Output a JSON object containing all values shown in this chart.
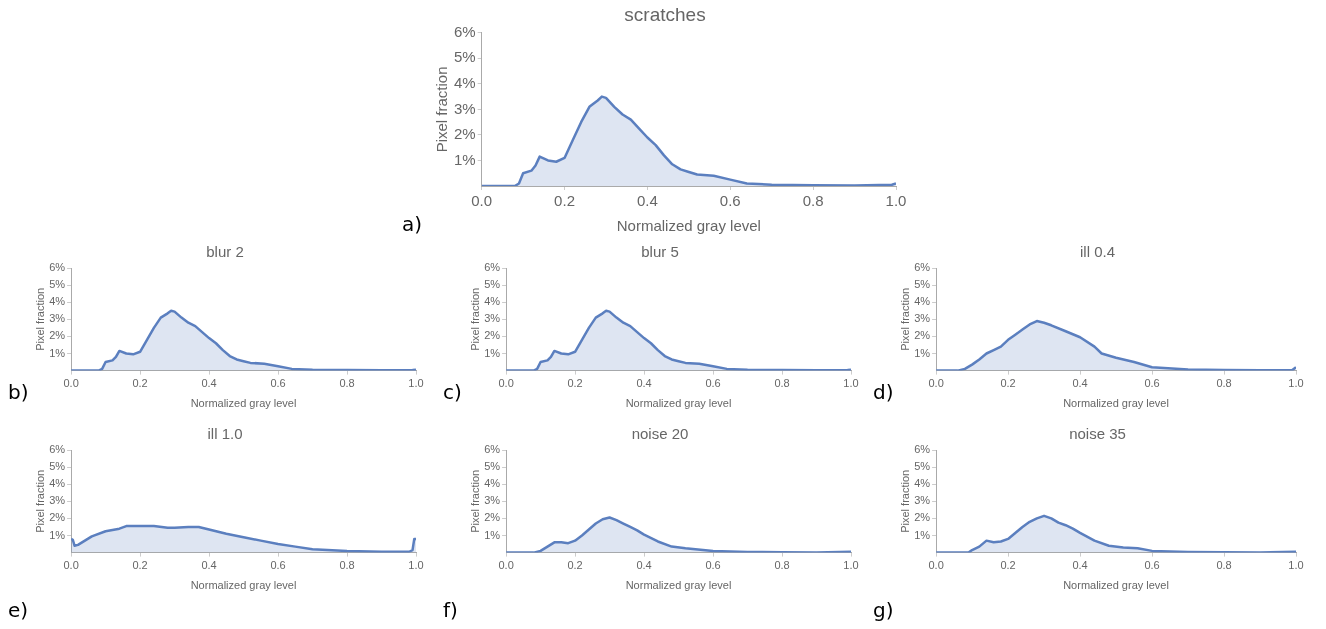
{
  "chart_data": [
    {
      "type": "area",
      "title": "scratches",
      "xlabel": "Normalized gray level",
      "ylabel": "Pixel fraction",
      "color": "#5b7fbf",
      "xlim": [
        0,
        1
      ],
      "ylim": [
        0,
        6
      ],
      "xticks": [
        {
          "value": 0,
          "label": "0.0"
        },
        {
          "value": 0.2,
          "label": "0.2"
        },
        {
          "value": 0.4,
          "label": "0.4"
        },
        {
          "value": 0.6,
          "label": "0.6"
        },
        {
          "value": 0.8,
          "label": "0.8"
        },
        {
          "value": 1,
          "label": "1.0"
        }
      ],
      "yticks": [
        {
          "value": 1,
          "label": "1%"
        },
        {
          "value": 2,
          "label": "2%"
        },
        {
          "value": 3,
          "label": "3%"
        },
        {
          "value": 4,
          "label": "4%"
        },
        {
          "value": 5,
          "label": "5%"
        },
        {
          "value": 6,
          "label": "6%"
        }
      ],
      "annotations": [
        "a)"
      ],
      "x": [
        0,
        0.08,
        0.09,
        0.1,
        0.12,
        0.13,
        0.14,
        0.16,
        0.18,
        0.2,
        0.22,
        0.24,
        0.26,
        0.28,
        0.29,
        0.3,
        0.32,
        0.34,
        0.36,
        0.38,
        0.4,
        0.42,
        0.44,
        0.46,
        0.48,
        0.5,
        0.52,
        0.56,
        0.6,
        0.64,
        0.7,
        0.8,
        0.9,
        0.99,
        1
      ],
      "values": [
        0,
        0,
        0.1,
        0.5,
        0.6,
        0.8,
        1.15,
        1,
        0.95,
        1.1,
        1.8,
        2.5,
        3.1,
        3.35,
        3.5,
        3.45,
        3.1,
        2.8,
        2.6,
        2.25,
        1.9,
        1.6,
        1.2,
        0.85,
        0.65,
        0.55,
        0.45,
        0.4,
        0.25,
        0.1,
        0.05,
        0.03,
        0.02,
        0.05,
        0.1
      ]
    },
    {
      "type": "area",
      "title": "blur 2",
      "xlabel": "Normalized gray level",
      "ylabel": "Pixel fraction",
      "color": "#5b7fbf",
      "xlim": [
        0,
        1
      ],
      "ylim": [
        0,
        6
      ],
      "xticks": [
        {
          "value": 0,
          "label": "0.0"
        },
        {
          "value": 0.2,
          "label": "0.2"
        },
        {
          "value": 0.4,
          "label": "0.4"
        },
        {
          "value": 0.6,
          "label": "0.6"
        },
        {
          "value": 0.8,
          "label": "0.8"
        },
        {
          "value": 1,
          "label": "1.0"
        }
      ],
      "yticks": [
        {
          "value": 1,
          "label": "1%"
        },
        {
          "value": 2,
          "label": "2%"
        },
        {
          "value": 3,
          "label": "3%"
        },
        {
          "value": 4,
          "label": "4%"
        },
        {
          "value": 5,
          "label": "5%"
        },
        {
          "value": 6,
          "label": "6%"
        }
      ],
      "annotations": [
        "b)"
      ],
      "x": [
        0,
        0.08,
        0.09,
        0.1,
        0.12,
        0.13,
        0.14,
        0.16,
        0.18,
        0.2,
        0.22,
        0.24,
        0.26,
        0.28,
        0.29,
        0.3,
        0.32,
        0.34,
        0.36,
        0.38,
        0.4,
        0.42,
        0.44,
        0.46,
        0.48,
        0.5,
        0.52,
        0.56,
        0.6,
        0.64,
        0.7,
        0.8,
        0.9,
        0.99,
        1
      ],
      "values": [
        0,
        0,
        0.1,
        0.5,
        0.6,
        0.8,
        1.15,
        1,
        0.95,
        1.1,
        1.8,
        2.5,
        3.1,
        3.35,
        3.5,
        3.45,
        3.1,
        2.8,
        2.6,
        2.25,
        1.9,
        1.6,
        1.2,
        0.85,
        0.65,
        0.55,
        0.45,
        0.4,
        0.25,
        0.1,
        0.05,
        0.03,
        0.02,
        0.03,
        0.05
      ]
    },
    {
      "type": "area",
      "title": "blur 5",
      "xlabel": "Normalized gray level",
      "ylabel": "Pixel fraction",
      "color": "#5b7fbf",
      "xlim": [
        0,
        1
      ],
      "ylim": [
        0,
        6
      ],
      "xticks": [
        {
          "value": 0,
          "label": "0.0"
        },
        {
          "value": 0.2,
          "label": "0.2"
        },
        {
          "value": 0.4,
          "label": "0.4"
        },
        {
          "value": 0.6,
          "label": "0.6"
        },
        {
          "value": 0.8,
          "label": "0.8"
        },
        {
          "value": 1,
          "label": "1.0"
        }
      ],
      "yticks": [
        {
          "value": 1,
          "label": "1%"
        },
        {
          "value": 2,
          "label": "2%"
        },
        {
          "value": 3,
          "label": "3%"
        },
        {
          "value": 4,
          "label": "4%"
        },
        {
          "value": 5,
          "label": "5%"
        },
        {
          "value": 6,
          "label": "6%"
        }
      ],
      "annotations": [
        "c)"
      ],
      "x": [
        0,
        0.08,
        0.09,
        0.1,
        0.12,
        0.13,
        0.14,
        0.16,
        0.18,
        0.2,
        0.22,
        0.24,
        0.26,
        0.28,
        0.29,
        0.3,
        0.32,
        0.34,
        0.36,
        0.38,
        0.4,
        0.42,
        0.44,
        0.46,
        0.48,
        0.5,
        0.52,
        0.56,
        0.6,
        0.64,
        0.7,
        0.8,
        0.9,
        0.99,
        1
      ],
      "values": [
        0,
        0,
        0.1,
        0.5,
        0.6,
        0.8,
        1.15,
        1,
        0.95,
        1.1,
        1.8,
        2.5,
        3.1,
        3.35,
        3.5,
        3.45,
        3.1,
        2.8,
        2.6,
        2.25,
        1.9,
        1.6,
        1.2,
        0.85,
        0.65,
        0.55,
        0.45,
        0.4,
        0.25,
        0.1,
        0.05,
        0.03,
        0.02,
        0.03,
        0.05
      ]
    },
    {
      "type": "area",
      "title": "ill 0.4",
      "xlabel": "Normalized gray level",
      "ylabel": "Pixel fraction",
      "color": "#5b7fbf",
      "xlim": [
        0,
        1
      ],
      "ylim": [
        0,
        6
      ],
      "xticks": [
        {
          "value": 0,
          "label": "0.0"
        },
        {
          "value": 0.2,
          "label": "0.2"
        },
        {
          "value": 0.4,
          "label": "0.4"
        },
        {
          "value": 0.6,
          "label": "0.6"
        },
        {
          "value": 0.8,
          "label": "0.8"
        },
        {
          "value": 1,
          "label": "1.0"
        }
      ],
      "yticks": [
        {
          "value": 1,
          "label": "1%"
        },
        {
          "value": 2,
          "label": "2%"
        },
        {
          "value": 3,
          "label": "3%"
        },
        {
          "value": 4,
          "label": "4%"
        },
        {
          "value": 5,
          "label": "5%"
        },
        {
          "value": 6,
          "label": "6%"
        }
      ],
      "annotations": [
        "d)"
      ],
      "x": [
        0,
        0.06,
        0.08,
        0.1,
        0.12,
        0.14,
        0.16,
        0.18,
        0.2,
        0.22,
        0.24,
        0.26,
        0.28,
        0.3,
        0.32,
        0.36,
        0.4,
        0.44,
        0.46,
        0.5,
        0.55,
        0.6,
        0.7,
        0.8,
        0.9,
        0.99,
        1
      ],
      "values": [
        0,
        0,
        0.1,
        0.35,
        0.65,
        1,
        1.2,
        1.4,
        1.8,
        2.1,
        2.4,
        2.7,
        2.9,
        2.8,
        2.65,
        2.3,
        1.95,
        1.4,
        1,
        0.75,
        0.5,
        0.2,
        0.06,
        0.03,
        0.02,
        0.03,
        0.2
      ]
    },
    {
      "type": "area",
      "title": "ill 1.0",
      "xlabel": "Normalized gray level",
      "ylabel": "Pixel fraction",
      "color": "#5b7fbf",
      "xlim": [
        0,
        1
      ],
      "ylim": [
        0,
        6
      ],
      "xticks": [
        {
          "value": 0,
          "label": "0.0"
        },
        {
          "value": 0.2,
          "label": "0.2"
        },
        {
          "value": 0.4,
          "label": "0.4"
        },
        {
          "value": 0.6,
          "label": "0.6"
        },
        {
          "value": 0.8,
          "label": "0.8"
        },
        {
          "value": 1,
          "label": "1.0"
        }
      ],
      "yticks": [
        {
          "value": 1,
          "label": "1%"
        },
        {
          "value": 2,
          "label": "2%"
        },
        {
          "value": 3,
          "label": "3%"
        },
        {
          "value": 4,
          "label": "4%"
        },
        {
          "value": 5,
          "label": "5%"
        },
        {
          "value": 6,
          "label": "6%"
        }
      ],
      "annotations": [
        "e)"
      ],
      "x": [
        0,
        0.005,
        0.01,
        0.02,
        0.04,
        0.06,
        0.1,
        0.14,
        0.16,
        0.2,
        0.24,
        0.28,
        0.3,
        0.34,
        0.37,
        0.4,
        0.45,
        0.5,
        0.55,
        0.6,
        0.65,
        0.7,
        0.8,
        0.9,
        0.98,
        0.99,
        0.995,
        1
      ],
      "values": [
        0.8,
        0.75,
        0.4,
        0.45,
        0.7,
        0.95,
        1.25,
        1.4,
        1.55,
        1.55,
        1.55,
        1.45,
        1.45,
        1.5,
        1.5,
        1.35,
        1.1,
        0.9,
        0.7,
        0.5,
        0.35,
        0.2,
        0.1,
        0.05,
        0.05,
        0.15,
        0.8,
        0.8
      ]
    },
    {
      "type": "area",
      "title": "noise 20",
      "xlabel": "Normalized gray level",
      "ylabel": "Pixel fraction",
      "color": "#5b7fbf",
      "xlim": [
        0,
        1
      ],
      "ylim": [
        0,
        6
      ],
      "xticks": [
        {
          "value": 0,
          "label": "0.0"
        },
        {
          "value": 0.2,
          "label": "0.2"
        },
        {
          "value": 0.4,
          "label": "0.4"
        },
        {
          "value": 0.6,
          "label": "0.6"
        },
        {
          "value": 0.8,
          "label": "0.8"
        },
        {
          "value": 1,
          "label": "1.0"
        }
      ],
      "yticks": [
        {
          "value": 1,
          "label": "1%"
        },
        {
          "value": 2,
          "label": "2%"
        },
        {
          "value": 3,
          "label": "3%"
        },
        {
          "value": 4,
          "label": "4%"
        },
        {
          "value": 5,
          "label": "5%"
        },
        {
          "value": 6,
          "label": "6%"
        }
      ],
      "annotations": [
        "f)"
      ],
      "x": [
        0,
        0.08,
        0.1,
        0.12,
        0.14,
        0.16,
        0.18,
        0.2,
        0.22,
        0.24,
        0.26,
        0.28,
        0.3,
        0.32,
        0.34,
        0.36,
        0.38,
        0.4,
        0.44,
        0.48,
        0.52,
        0.6,
        0.7,
        0.8,
        0.9,
        1
      ],
      "values": [
        0,
        0,
        0.1,
        0.35,
        0.6,
        0.6,
        0.55,
        0.7,
        1,
        1.35,
        1.7,
        1.95,
        2.05,
        1.9,
        1.7,
        1.5,
        1.3,
        1.05,
        0.65,
        0.35,
        0.25,
        0.1,
        0.04,
        0.02,
        0.01,
        0.05
      ]
    },
    {
      "type": "area",
      "title": "noise 35",
      "xlabel": "Normalized gray level",
      "ylabel": "Pixel fraction",
      "color": "#5b7fbf",
      "xlim": [
        0,
        1
      ],
      "ylim": [
        0,
        6
      ],
      "xticks": [
        {
          "value": 0,
          "label": "0.0"
        },
        {
          "value": 0.2,
          "label": "0.2"
        },
        {
          "value": 0.4,
          "label": "0.4"
        },
        {
          "value": 0.6,
          "label": "0.6"
        },
        {
          "value": 0.8,
          "label": "0.8"
        },
        {
          "value": 1,
          "label": "1.0"
        }
      ],
      "yticks": [
        {
          "value": 1,
          "label": "1%"
        },
        {
          "value": 2,
          "label": "2%"
        },
        {
          "value": 3,
          "label": "3%"
        },
        {
          "value": 4,
          "label": "4%"
        },
        {
          "value": 5,
          "label": "5%"
        },
        {
          "value": 6,
          "label": "6%"
        }
      ],
      "annotations": [
        "g)"
      ],
      "x": [
        0,
        0.09,
        0.1,
        0.12,
        0.14,
        0.16,
        0.18,
        0.2,
        0.22,
        0.24,
        0.26,
        0.28,
        0.3,
        0.32,
        0.34,
        0.36,
        0.38,
        0.4,
        0.44,
        0.48,
        0.52,
        0.56,
        0.6,
        0.7,
        0.8,
        0.9,
        1
      ],
      "values": [
        0,
        0,
        0.15,
        0.35,
        0.7,
        0.6,
        0.65,
        0.8,
        1.15,
        1.5,
        1.8,
        2,
        2.15,
        2,
        1.75,
        1.6,
        1.4,
        1.15,
        0.7,
        0.4,
        0.3,
        0.25,
        0.1,
        0.04,
        0.02,
        0.01,
        0.05
      ]
    }
  ]
}
